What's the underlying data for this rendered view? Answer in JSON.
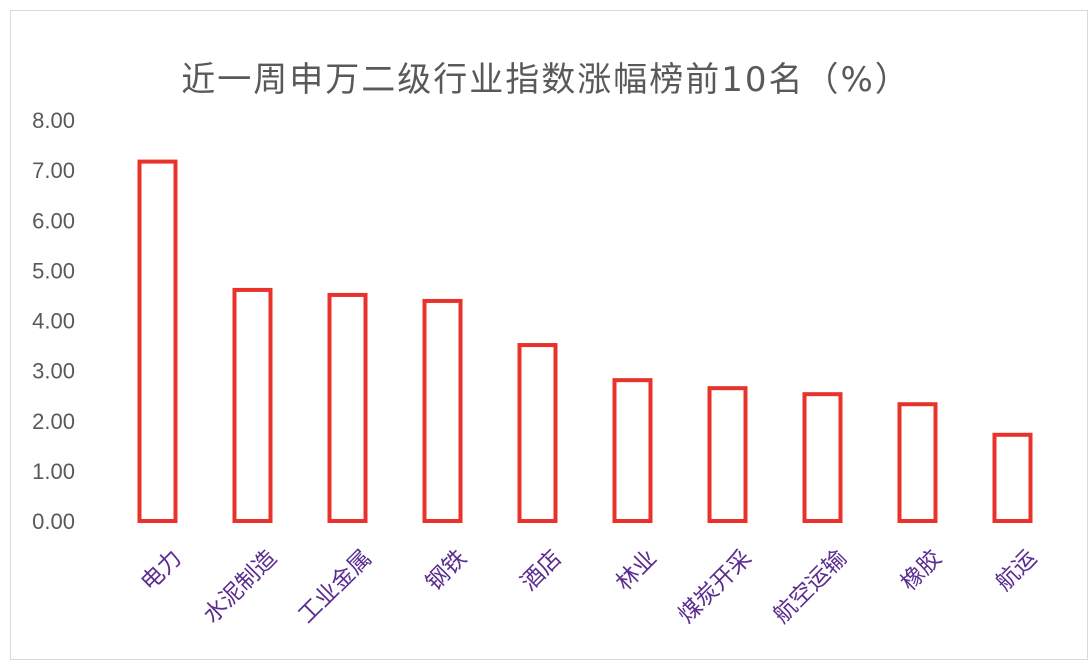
{
  "chart_data": {
    "type": "bar",
    "title": "近一周申万二级行业指数涨幅榜前10名（%）",
    "categories": [
      "电力",
      "水泥制造",
      "工业金属",
      "钢铁",
      "酒店",
      "林业",
      "煤炭开采",
      "航空运输",
      "橡胶",
      "航运"
    ],
    "values": [
      7.17,
      4.61,
      4.51,
      4.39,
      3.51,
      2.81,
      2.65,
      2.53,
      2.33,
      1.72
    ],
    "ylim": [
      0,
      8
    ],
    "yticks": [
      "0.00",
      "1.00",
      "2.00",
      "3.00",
      "4.00",
      "5.00",
      "6.00",
      "7.00",
      "8.00"
    ],
    "xlabel": "",
    "ylabel": "",
    "grid": false,
    "bar_style": "outline",
    "colors": {
      "bar_stroke": "#e8322b",
      "category_label": "#5b2d90",
      "axis_text": "#595959"
    }
  }
}
